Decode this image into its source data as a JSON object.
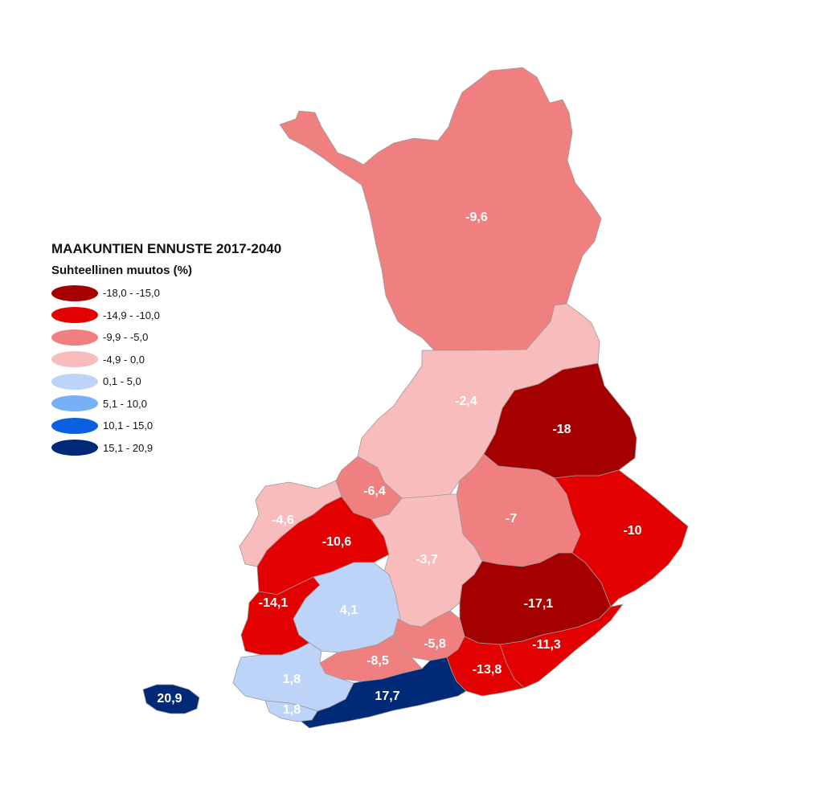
{
  "legend": {
    "title": "MAAKUNTIEN ENNUSTE 2017-2040",
    "subtitle": "Suhteellinen muutos (%)",
    "classes": [
      {
        "label": "-18,0 - -15,0",
        "color": "#a50000"
      },
      {
        "label": "-14,9 - -10,0",
        "color": "#e30000"
      },
      {
        "label": "-9,9 - -5,0",
        "color": "#f08080"
      },
      {
        "label": "-4,9 - 0,0",
        "color": "#f8bcbc"
      },
      {
        "label": "0,1 - 5,0",
        "color": "#bdd3f7"
      },
      {
        "label": "5,1 - 10,0",
        "color": "#78b0f5"
      },
      {
        "label": "10,1 - 15,0",
        "color": "#0a60e0"
      },
      {
        "label": "15,1 - 20,9",
        "color": "#002a78"
      }
    ]
  },
  "regions": [
    {
      "id": "lappi",
      "label": "-9,6",
      "class": 2
    },
    {
      "id": "pohjois-pohjanmaa",
      "label": "-2,4",
      "class": 3
    },
    {
      "id": "kainuu",
      "label": "-18",
      "class": 0
    },
    {
      "id": "keski-pohjanmaa",
      "label": "-6,4",
      "class": 2
    },
    {
      "id": "pohjanmaa",
      "label": "-4,6",
      "class": 3
    },
    {
      "id": "etela-pohjanmaa",
      "label": "-10,6",
      "class": 1
    },
    {
      "id": "pohjois-savo",
      "label": "-7",
      "class": 2
    },
    {
      "id": "pohjois-karjala",
      "label": "-10",
      "class": 1
    },
    {
      "id": "keski-suomi",
      "label": "-3,7",
      "class": 3
    },
    {
      "id": "satakunta",
      "label": "-14,1",
      "class": 1
    },
    {
      "id": "pirkanmaa",
      "label": "4,1",
      "class": 4
    },
    {
      "id": "etela-savo",
      "label": "-17,1",
      "class": 0
    },
    {
      "id": "etela-karjala",
      "label": "-11,3",
      "class": 1
    },
    {
      "id": "paijat-hame",
      "label": "-5,8",
      "class": 2
    },
    {
      "id": "kanta-hame",
      "label": "-8,5",
      "class": 2
    },
    {
      "id": "kymenlaakso",
      "label": "-13,8",
      "class": 1
    },
    {
      "id": "varsinais-suomi",
      "label": "1,8",
      "class": 4
    },
    {
      "id": "uusimaa",
      "label": "17,7",
      "class": 7
    },
    {
      "id": "ahvenanmaa",
      "label": "20,9",
      "class": 7
    },
    {
      "id": "varsinais-suomi-archipelago",
      "label": "1,8",
      "class": 4
    }
  ]
}
